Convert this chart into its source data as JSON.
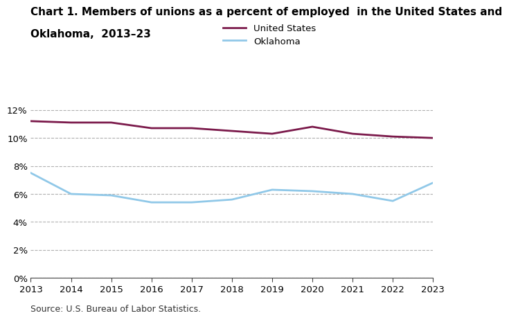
{
  "title_line1": "Chart 1. Members of unions as a percent of employed  in the United States and",
  "title_line2": "Oklahoma,  2013–23",
  "years": [
    2013,
    2014,
    2015,
    2016,
    2017,
    2018,
    2019,
    2020,
    2021,
    2022,
    2023
  ],
  "us_values": [
    11.2,
    11.1,
    11.1,
    10.7,
    10.7,
    10.5,
    10.3,
    10.8,
    10.3,
    10.1,
    10.0
  ],
  "ok_values": [
    7.5,
    6.0,
    5.9,
    5.4,
    5.4,
    5.6,
    6.3,
    6.2,
    6.0,
    5.5,
    6.8
  ],
  "us_color": "#7b1a4b",
  "ok_color": "#90c8e8",
  "ylim": [
    0,
    13
  ],
  "yticks": [
    0,
    2,
    4,
    6,
    8,
    10,
    12
  ],
  "ytick_labels": [
    "0%",
    "2%",
    "4%",
    "6%",
    "8%",
    "10%",
    "12%"
  ],
  "legend_labels": [
    "United States",
    "Oklahoma"
  ],
  "source_text": "Source: U.S. Bureau of Labor Statistics.",
  "background_color": "#ffffff",
  "grid_color": "#b0b0b0",
  "title_fontsize": 11,
  "tick_fontsize": 9.5,
  "legend_fontsize": 9.5,
  "source_fontsize": 9,
  "line_width": 2.0
}
